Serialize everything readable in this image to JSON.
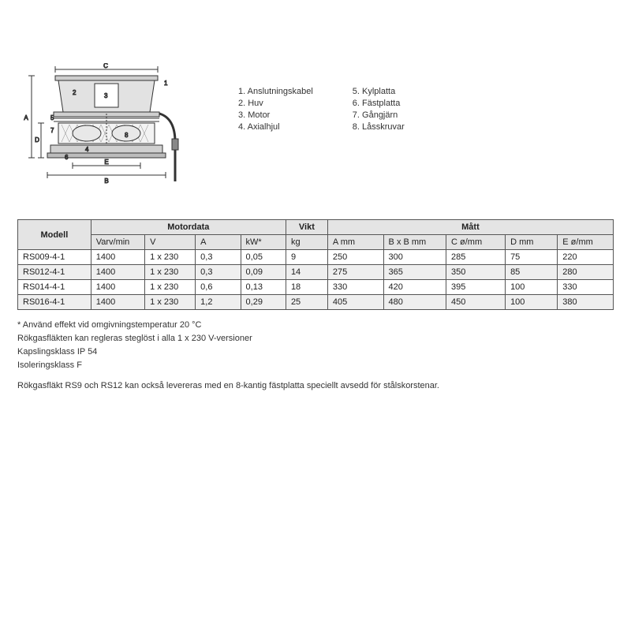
{
  "legend": {
    "col1": [
      "1. Anslutningskabel",
      "2. Huv",
      "3. Motor",
      "4. Axialhjul"
    ],
    "col2": [
      "5. Kylplatta",
      "6. Fästplatta",
      "7. Gångjärn",
      "8. Låsskruvar"
    ]
  },
  "table": {
    "groupHeaders": {
      "model": "Modell",
      "motordata": "Motordata",
      "vikt": "Vikt",
      "matt": "Mått"
    },
    "subHeaders": [
      "Varv/min",
      "V",
      "A",
      "kW*",
      "kg",
      "A mm",
      "B x B mm",
      "C ø/mm",
      "D mm",
      "E ø/mm"
    ],
    "rows": [
      [
        "RS009-4-1",
        "1400",
        "1 x 230",
        "0,3",
        "0,05",
        "9",
        "250",
        "300",
        "285",
        "75",
        "220"
      ],
      [
        "RS012-4-1",
        "1400",
        "1 x 230",
        "0,3",
        "0,09",
        "14",
        "275",
        "365",
        "350",
        "85",
        "280"
      ],
      [
        "RS014-4-1",
        "1400",
        "1 x 230",
        "0,6",
        "0,13",
        "18",
        "330",
        "420",
        "395",
        "100",
        "330"
      ],
      [
        "RS016-4-1",
        "1400",
        "1 x 230",
        "1,2",
        "0,29",
        "25",
        "405",
        "480",
        "450",
        "100",
        "380"
      ]
    ]
  },
  "notes": [
    "* Använd effekt vid omgivningstemperatur 20 °C",
    "Rökgasfläkten kan regleras steglöst i alla 1 x 230 V-versioner",
    "Kapslingsklass IP 54",
    "Isoleringsklass F"
  ],
  "note2": "Rökgasfläkt RS9 och RS12 kan också levereras med en 8-kantig fästplatta speciellt avsedd för stålskorstenar.",
  "diagram": {
    "stroke": "#333333",
    "fill_light": "#d8d8d8",
    "fill_mid": "#bfbfbf",
    "labels": [
      "1",
      "2",
      "3",
      "4",
      "5",
      "6",
      "7",
      "8",
      "A",
      "B",
      "C",
      "D",
      "E"
    ]
  }
}
